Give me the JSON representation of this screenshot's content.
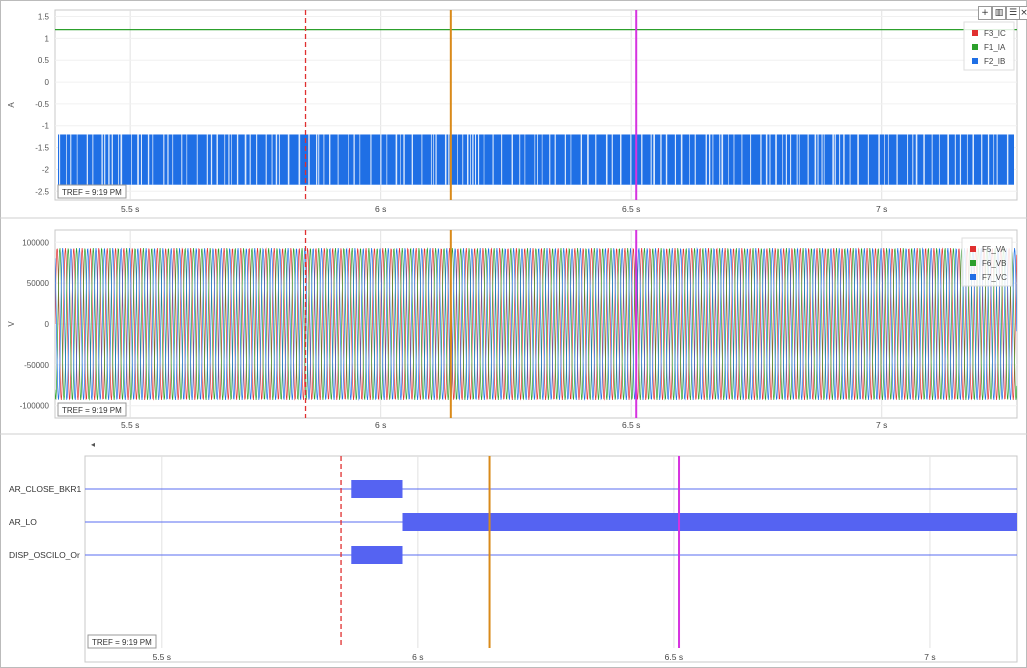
{
  "toolbar": {
    "add_icon": "+",
    "layout_icon": "▥",
    "stack_icon": "☰",
    "close_icon": "×"
  },
  "tref_label": "TREF = 9:19 PM",
  "chart_data": [
    {
      "type": "line",
      "ylabel": "A",
      "yticks": [
        "1.5",
        "1",
        "0.5",
        "0",
        "-0.5",
        "-1",
        "-1.5",
        "-2",
        "-2.5"
      ],
      "ylim": [
        -2.7,
        1.65
      ],
      "xlim": [
        5.35,
        7.27
      ],
      "xticks": [
        "5.5 s",
        "6 s",
        "6.5 s",
        "7 s"
      ],
      "series": [
        {
          "name": "F3_IC",
          "color": "#e03030",
          "values": []
        },
        {
          "name": "F1_IA",
          "color": "#2ca02c",
          "constant": 1.2
        },
        {
          "name": "F2_IB",
          "color": "#1f6fe5",
          "band": [
            -2.35,
            -1.2
          ]
        }
      ]
    },
    {
      "type": "line",
      "ylabel": "V",
      "yticks": [
        "100000",
        "50000",
        "0",
        "-50000",
        "-100000"
      ],
      "ylim": [
        -115000,
        115000
      ],
      "xlim": [
        5.35,
        7.27
      ],
      "xticks": [
        "5.5 s",
        "6 s",
        "6.5 s",
        "7 s"
      ],
      "series": [
        {
          "name": "F5_VA",
          "color": "#e03030",
          "amplitude": 93000
        },
        {
          "name": "F6_VB",
          "color": "#2ca02c",
          "amplitude": 93000
        },
        {
          "name": "F7_VC",
          "color": "#1f6fe5",
          "amplitude": 93000
        }
      ]
    },
    {
      "type": "digital",
      "xlim": [
        5.35,
        7.17
      ],
      "xticks": [
        "5.5 s",
        "6 s",
        "6.5 s",
        "7 s"
      ],
      "channels": [
        {
          "name": "AR_CLOSE_BKR1",
          "on": [
            [
              5.87,
              5.97
            ]
          ]
        },
        {
          "name": "AR_LO",
          "on": [
            [
              5.97,
              7.17
            ]
          ]
        },
        {
          "name": "DISP_OSCILO_Or",
          "on": [
            [
              5.87,
              5.97
            ]
          ]
        }
      ]
    }
  ],
  "cursors": [
    {
      "time": 5.85,
      "color": "#e03030",
      "style": "dashed"
    },
    {
      "time": 6.14,
      "color": "#d98a1a",
      "style": "solid"
    },
    {
      "time": 6.51,
      "color": "#d633e0",
      "style": "solid"
    }
  ]
}
